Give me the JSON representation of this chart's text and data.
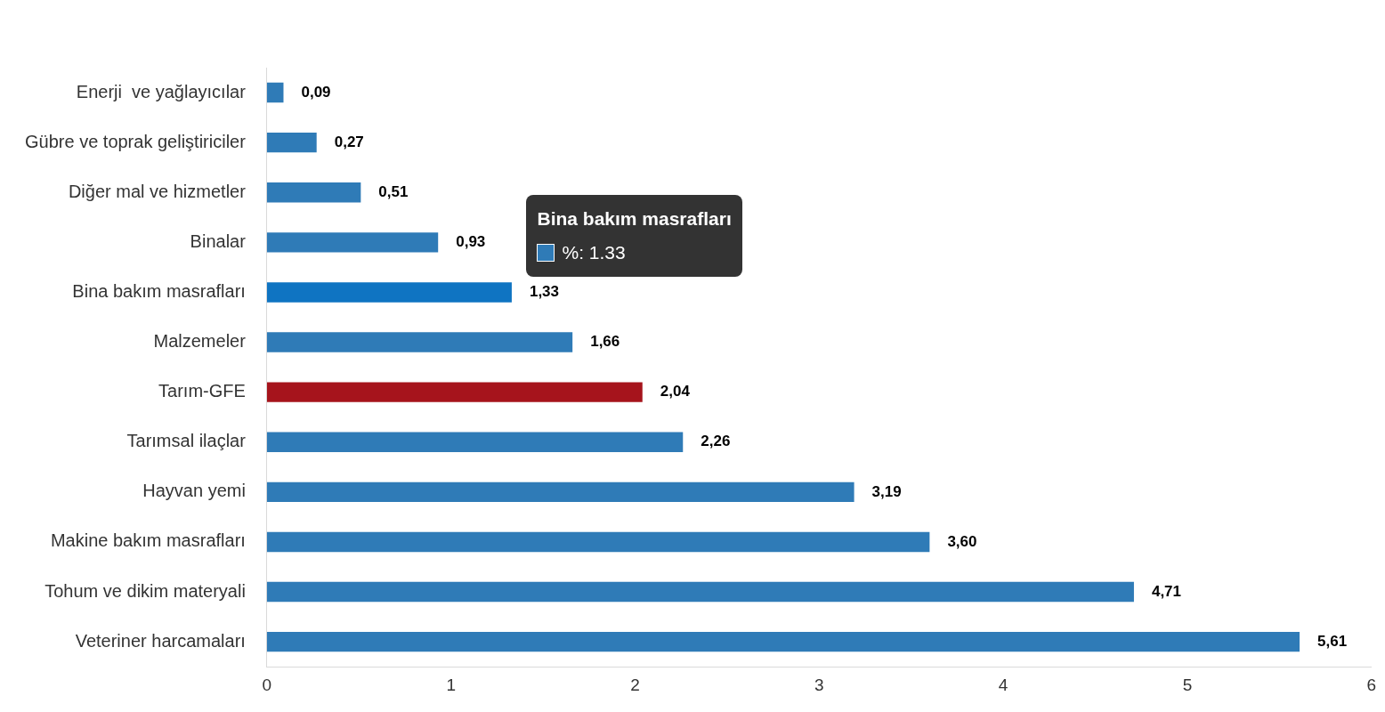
{
  "chart_data": {
    "type": "bar",
    "orientation": "horizontal",
    "categories": [
      "Enerji  ve yağlayıcılar",
      "Gübre ve toprak geliştiriciler",
      "Diğer mal ve hizmetler",
      "Binalar",
      "Bina bakım masrafları",
      "Malzemeler",
      "Tarım-GFE",
      "Tarımsal ilaçlar",
      "Hayvan yemi",
      "Makine bakım masrafları",
      "Tohum ve dikim materyali",
      "Veteriner harcamaları"
    ],
    "values": [
      0.09,
      0.27,
      0.51,
      0.93,
      1.33,
      1.66,
      2.04,
      2.26,
      3.19,
      3.6,
      4.71,
      5.61
    ],
    "colors": [
      "#2f7bb7",
      "#2f7bb7",
      "#2f7bb7",
      "#2f7bb7",
      "#0f74c2",
      "#2f7bb7",
      "#a6141c",
      "#2f7bb7",
      "#2f7bb7",
      "#2f7bb7",
      "#2f7bb7",
      "#2f7bb7"
    ],
    "value_labels": [
      "0,09",
      "0,27",
      "0,51",
      "0,93",
      "1,33",
      "1,66",
      "2,04",
      "2,26",
      "3,19",
      "3,60",
      "4,71",
      "5,61"
    ],
    "xlim": [
      0,
      6
    ],
    "xticks": [
      0,
      1,
      2,
      3,
      4,
      5,
      6
    ],
    "grid": false,
    "legend": false,
    "annotations": [
      "Bina bakım masrafları",
      "%: 1.33"
    ]
  }
}
